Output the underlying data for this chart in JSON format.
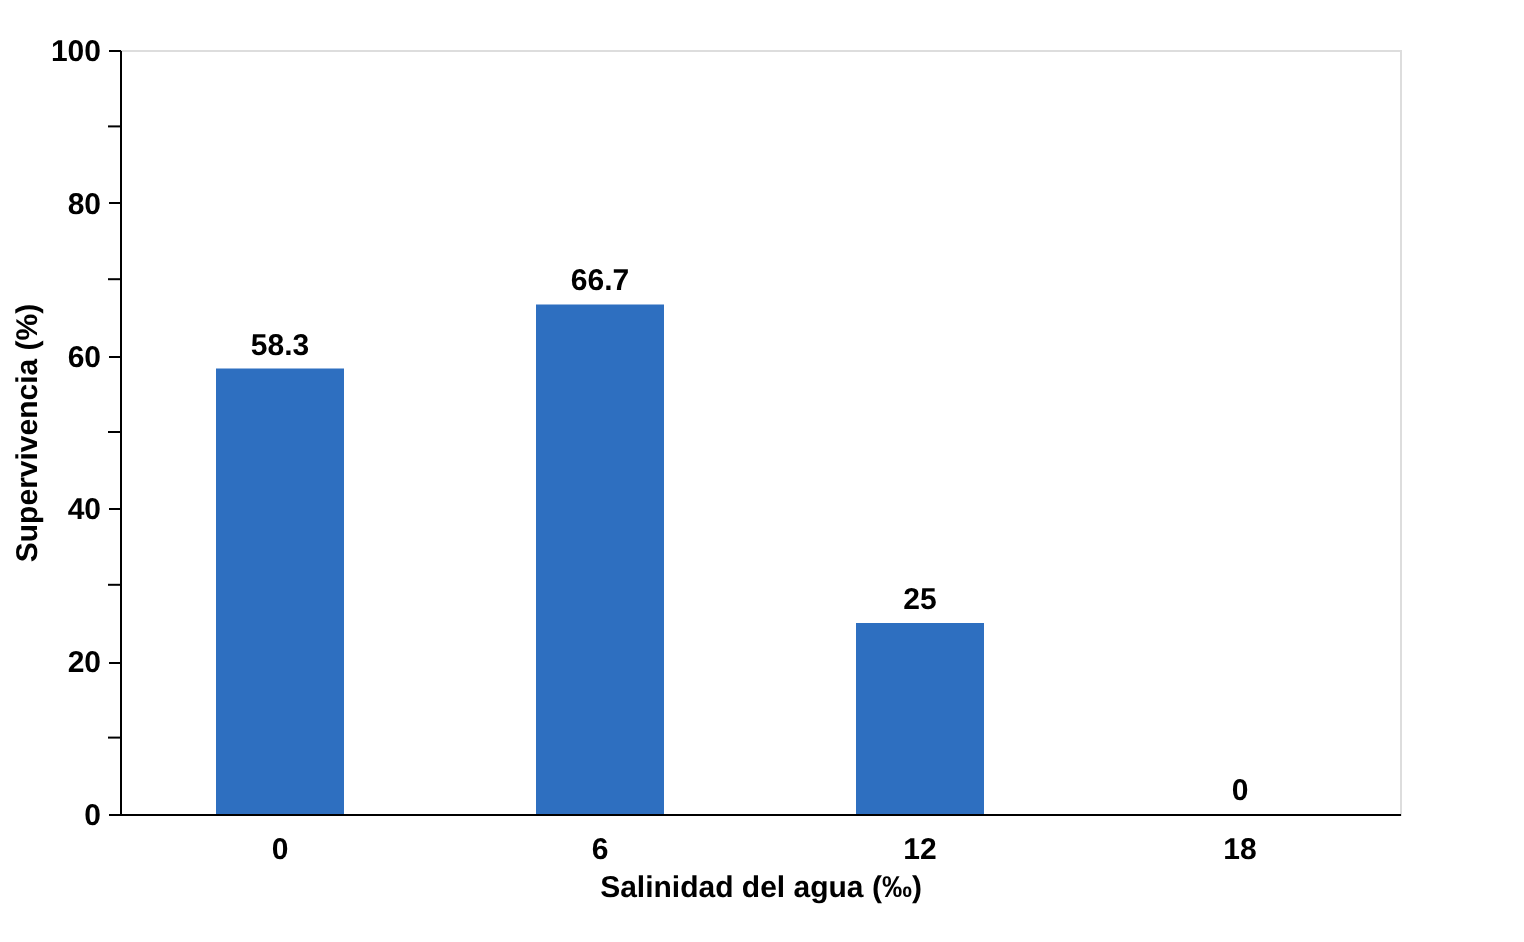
{
  "chart_data": {
    "type": "bar",
    "xlabel": "Salinidad del agua (‰)",
    "ylabel": "Supervivencia (%)",
    "categories": [
      "0",
      "6",
      "12",
      "18"
    ],
    "values": [
      58.3,
      66.7,
      25,
      0
    ],
    "color": "#2e6fc0",
    "ylim": [
      0,
      100
    ],
    "yticks": [
      0,
      {
        "value": 10,
        "label": null
      },
      20,
      {
        "value": 30,
        "label": null
      },
      40,
      {
        "value": 50,
        "label": null
      },
      60,
      {
        "value": 70,
        "label": null
      },
      80,
      {
        "value": 90,
        "label": null
      },
      100
    ],
    "data_labels": true,
    "grid": false
  }
}
